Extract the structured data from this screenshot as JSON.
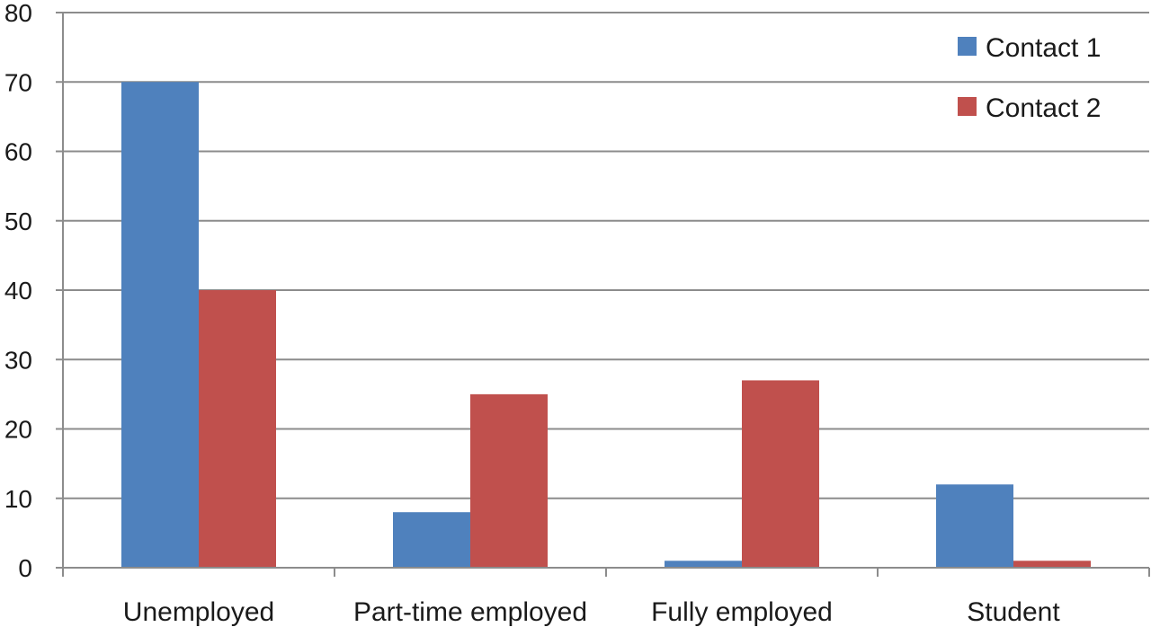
{
  "chart_data": {
    "type": "bar",
    "categories": [
      "Unemployed",
      "Part-time employed",
      "Fully employed",
      "Student"
    ],
    "series": [
      {
        "name": "Contact 1",
        "color": "#4f81bd",
        "values": [
          70,
          8,
          1,
          12
        ]
      },
      {
        "name": "Contact 2",
        "color": "#c0504d",
        "values": [
          40,
          25,
          27,
          1
        ]
      }
    ],
    "ylim": [
      0,
      80
    ],
    "yticks": [
      0,
      10,
      20,
      30,
      40,
      50,
      60,
      70,
      80
    ],
    "grid": true,
    "legend_position": "top-right",
    "title": "",
    "xlabel": "",
    "ylabel": ""
  }
}
